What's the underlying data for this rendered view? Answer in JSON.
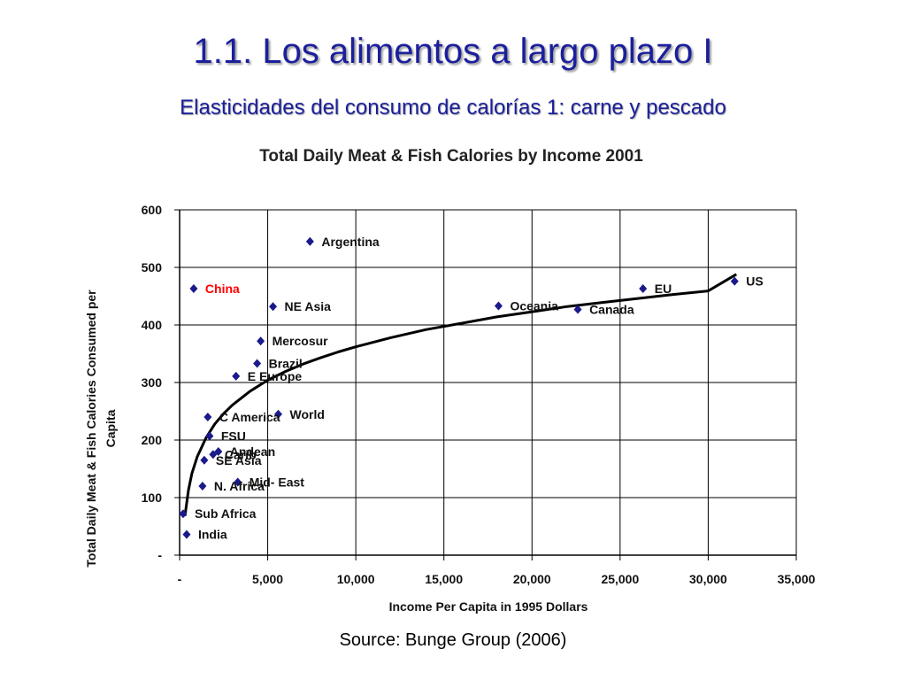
{
  "slide": {
    "title": "1.1. Los alimentos a largo plazo I",
    "subtitle": "Elasticidades del consumo de calorías 1: carne y pescado",
    "source": "Source: Bunge Group (2006)"
  },
  "colors": {
    "title": "#1b1f9c",
    "marker": "#1a1a8c",
    "highlight": "#ff0000",
    "curve": "#000000"
  },
  "chart_data": {
    "type": "scatter",
    "title": "Total Daily Meat & Fish Calories by Income 2001",
    "xlabel": "Income Per Capita in 1995 Dollars",
    "ylabel_lines": [
      "Total Daily Meat & Fish Calories Consumed per",
      "Capita"
    ],
    "xlim": [
      0,
      35000
    ],
    "ylim": [
      0,
      600
    ],
    "x_ticks": [
      0,
      5000,
      10000,
      15000,
      20000,
      25000,
      30000,
      35000
    ],
    "x_tick_labels": [
      "-",
      "5,000",
      "10,000",
      "15,000",
      "20,000",
      "25,000",
      "30,000",
      "35,000"
    ],
    "y_ticks": [
      0,
      100,
      200,
      300,
      400,
      500,
      600
    ],
    "y_tick_labels": [
      "-",
      "100",
      "200",
      "300",
      "400",
      "500",
      "600"
    ],
    "grid": true,
    "points": [
      {
        "label": "Argentina",
        "x": 7400,
        "y": 545
      },
      {
        "label": "China",
        "x": 800,
        "y": 463,
        "highlight": true
      },
      {
        "label": "NE Asia",
        "x": 5300,
        "y": 432
      },
      {
        "label": "Oceania",
        "x": 18100,
        "y": 433
      },
      {
        "label": "Canada",
        "x": 22600,
        "y": 427
      },
      {
        "label": "EU",
        "x": 26300,
        "y": 463
      },
      {
        "label": "US",
        "x": 31500,
        "y": 476
      },
      {
        "label": "Mercosur",
        "x": 4600,
        "y": 372
      },
      {
        "label": "Brazil",
        "x": 4400,
        "y": 333
      },
      {
        "label": "E Europe",
        "x": 3200,
        "y": 311
      },
      {
        "label": "World",
        "x": 5600,
        "y": 245
      },
      {
        "label": "C America",
        "x": 1600,
        "y": 240
      },
      {
        "label": "FSU",
        "x": 1700,
        "y": 207
      },
      {
        "label": "Andean",
        "x": 2200,
        "y": 180
      },
      {
        "label": "Carib",
        "x": 1900,
        "y": 175
      },
      {
        "label": "SE Asia",
        "x": 1400,
        "y": 165
      },
      {
        "label": "Mid- East",
        "x": 3300,
        "y": 127
      },
      {
        "label": "N. Africa",
        "x": 1300,
        "y": 120
      },
      {
        "label": "Sub Africa",
        "x": 200,
        "y": 72
      },
      {
        "label": "India",
        "x": 400,
        "y": 36
      }
    ],
    "trend_curve": {
      "type": "logarithmic",
      "x": [
        300,
        500,
        700,
        1000,
        1500,
        2000,
        2500,
        3000,
        4000,
        5000,
        6000,
        7000,
        8000,
        9000,
        10000,
        12000,
        14000,
        16000,
        18000,
        20000,
        22000,
        24000,
        26000,
        28000,
        30000,
        31600
      ],
      "y": [
        68,
        113,
        142,
        171,
        204,
        228,
        246,
        261,
        285,
        304,
        319,
        332,
        343,
        353,
        362,
        378,
        392,
        403,
        414,
        423,
        432,
        439,
        446,
        453,
        459,
        488
      ]
    }
  }
}
